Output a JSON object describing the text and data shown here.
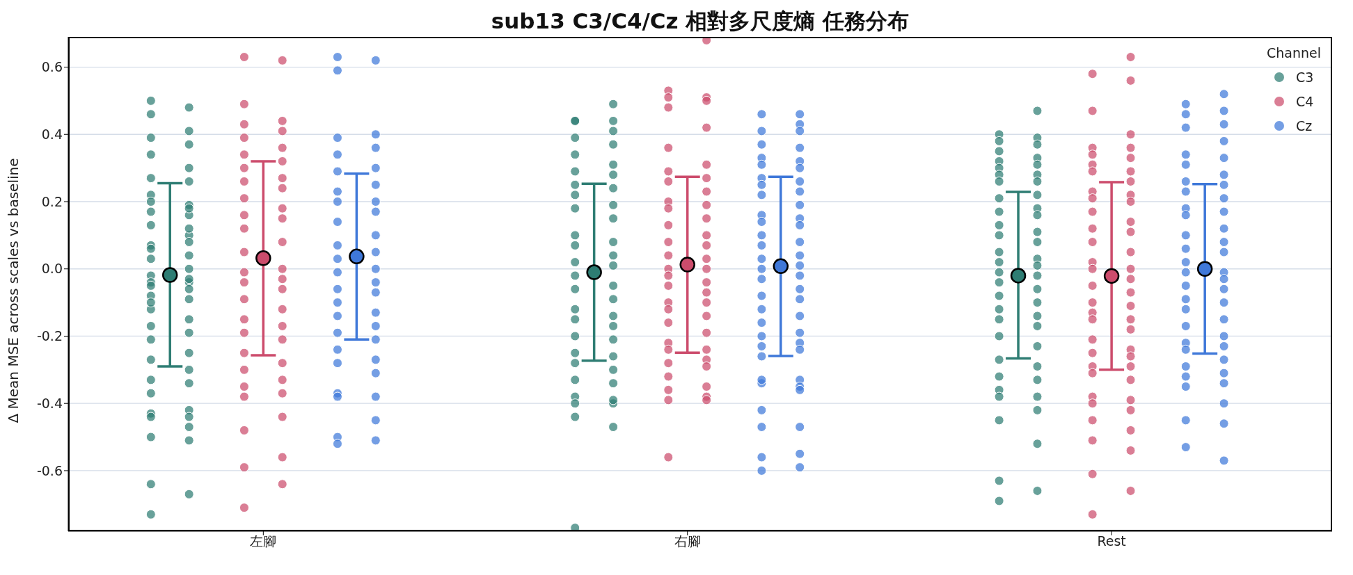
{
  "chart_data": {
    "type": "scatter",
    "title": "sub13 C3/C4/Cz 相對多尺度熵 任務分布",
    "ylabel": "Δ Mean MSE across scales vs baseline",
    "legend_title": "Channel",
    "categories": [
      "左腳",
      "右腳",
      "Rest"
    ],
    "ylim": [
      -0.78,
      0.69
    ],
    "yticks": [
      -0.6,
      -0.4,
      -0.2,
      {
        "value": 0,
        "label": "0.0"
      },
      0.2,
      0.4,
      0.6
    ],
    "grid": "y",
    "legend": "top right",
    "marker": "circle",
    "series": [
      {
        "name": "C3",
        "color": "#2e7d73",
        "x": [
          "左腳",
          "左腳",
          "左腳",
          "左腳",
          "左腳",
          "左腳",
          "左腳",
          "左腳",
          "左腳",
          "左腳",
          "左腳",
          "左腳",
          "左腳",
          "左腳",
          "左腳",
          "左腳",
          "左腳",
          "左腳",
          "左腳",
          "左腳",
          "左腳",
          "左腳",
          "左腳",
          "左腳",
          "左腳",
          "左腳",
          "左腳",
          "左腳",
          "左腳",
          "左腳",
          "左腳",
          "左腳",
          "左腳",
          "左腳",
          "左腳",
          "左腳",
          "左腳",
          "左腳",
          "左腳",
          "左腳",
          "左腳",
          "左腳",
          "左腳",
          "左腳",
          "左腳",
          "左腳",
          "左腳",
          "左腳",
          "左腳",
          "左腳",
          "左腳",
          "左腳",
          "左腳",
          "左腳",
          "左腳",
          "右腳",
          "右腳",
          "右腳",
          "右腳",
          "右腳",
          "右腳",
          "右腳",
          "右腳",
          "右腳",
          "右腳",
          "右腳",
          "右腳",
          "右腳",
          "右腳",
          "右腳",
          "右腳",
          "右腳",
          "右腳",
          "右腳",
          "右腳",
          "右腳",
          "右腳",
          "右腳",
          "右腳",
          "右腳",
          "右腳",
          "右腳",
          "右腳",
          "右腳",
          "右腳",
          "右腳",
          "右腳",
          "右腳",
          "右腳",
          "右腳",
          "右腳",
          "右腳",
          "右腳",
          "右腳",
          "右腳",
          "右腳",
          "右腳",
          "右腳",
          "右腳",
          "右腳",
          "右腳",
          "Rest",
          "Rest",
          "Rest",
          "Rest",
          "Rest",
          "Rest",
          "Rest",
          "Rest",
          "Rest",
          "Rest",
          "Rest",
          "Rest",
          "Rest",
          "Rest",
          "Rest",
          "Rest",
          "Rest",
          "Rest",
          "Rest",
          "Rest",
          "Rest",
          "Rest",
          "Rest",
          "Rest",
          "Rest",
          "Rest",
          "Rest",
          "Rest",
          "Rest",
          "Rest",
          "Rest",
          "Rest",
          "Rest",
          "Rest",
          "Rest",
          "Rest",
          "Rest",
          "Rest",
          "Rest",
          "Rest",
          "Rest",
          "Rest",
          "Rest",
          "Rest",
          "Rest",
          "Rest",
          "Rest",
          "Rest",
          "Rest",
          "Rest",
          "Rest",
          "Rest"
        ],
        "values": [
          0.5,
          0.48,
          0.46,
          0.41,
          0.39,
          0.37,
          0.34,
          0.3,
          0.27,
          0.26,
          0.22,
          0.19,
          0.17,
          0.16,
          0.13,
          0.1,
          0.07,
          0.04,
          0.03,
          0.0,
          -0.02,
          -0.04,
          -0.04,
          -0.06,
          -0.08,
          -0.09,
          -0.12,
          -0.15,
          -0.17,
          -0.19,
          -0.21,
          -0.25,
          -0.27,
          -0.3,
          -0.33,
          -0.34,
          -0.37,
          -0.42,
          -0.43,
          -0.44,
          -0.44,
          -0.47,
          -0.5,
          -0.51,
          -0.64,
          -0.67,
          -0.73,
          0.12,
          0.06,
          0.08,
          -0.05,
          -0.03,
          0.2,
          0.18,
          -0.1,
          0.49,
          0.44,
          0.44,
          0.44,
          0.41,
          0.39,
          0.37,
          0.34,
          0.31,
          0.29,
          0.28,
          0.25,
          0.24,
          0.22,
          0.19,
          0.18,
          0.15,
          0.1,
          0.08,
          0.07,
          0.04,
          0.02,
          0.01,
          -0.02,
          -0.05,
          -0.06,
          -0.09,
          -0.12,
          -0.14,
          -0.15,
          -0.17,
          -0.2,
          -0.21,
          -0.25,
          -0.26,
          -0.28,
          -0.3,
          -0.33,
          -0.34,
          -0.38,
          -0.4,
          -0.4,
          -0.39,
          -0.44,
          -0.47,
          -0.77,
          0.47,
          0.4,
          0.39,
          0.38,
          0.37,
          0.35,
          0.33,
          0.32,
          0.31,
          0.3,
          0.28,
          0.28,
          0.26,
          0.26,
          0.22,
          0.21,
          0.18,
          0.17,
          0.16,
          0.13,
          0.11,
          0.1,
          0.08,
          0.05,
          0.03,
          0.02,
          0.01,
          -0.01,
          -0.02,
          -0.04,
          -0.06,
          -0.08,
          -0.1,
          -0.12,
          -0.14,
          -0.15,
          -0.17,
          -0.2,
          -0.23,
          -0.27,
          -0.29,
          -0.32,
          -0.33,
          -0.36,
          -0.38,
          -0.38,
          -0.42,
          -0.45,
          -0.52,
          -0.63,
          -0.66,
          -0.69
        ]
      },
      {
        "name": "C4",
        "color": "#cc4c6c",
        "x": [
          "左腳",
          "左腳",
          "左腳",
          "左腳",
          "左腳",
          "左腳",
          "左腳",
          "左腳",
          "左腳",
          "左腳",
          "左腳",
          "左腳",
          "左腳",
          "左腳",
          "左腳",
          "左腳",
          "左腳",
          "左腳",
          "左腳",
          "左腳",
          "左腳",
          "左腳",
          "左腳",
          "左腳",
          "左腳",
          "左腳",
          "左腳",
          "左腳",
          "左腳",
          "左腳",
          "左腳",
          "左腳",
          "左腳",
          "左腳",
          "左腳",
          "左腳",
          "左腳",
          "左腳",
          "左腳",
          "左腳",
          "左腳",
          "左腳",
          "左腳",
          "左腳",
          "左腳",
          "右腳",
          "右腳",
          "右腳",
          "右腳",
          "右腳",
          "右腳",
          "右腳",
          "右腳",
          "右腳",
          "右腳",
          "右腳",
          "右腳",
          "右腳",
          "右腳",
          "右腳",
          "右腳",
          "右腳",
          "右腳",
          "右腳",
          "右腳",
          "右腳",
          "右腳",
          "右腳",
          "右腳",
          "右腳",
          "右腳",
          "右腳",
          "右腳",
          "右腳",
          "右腳",
          "右腳",
          "右腳",
          "右腳",
          "右腳",
          "右腳",
          "右腳",
          "右腳",
          "右腳",
          "右腳",
          "右腳",
          "右腳",
          "右腳",
          "右腳",
          "右腳",
          "右腳",
          "右腳",
          "右腳",
          "右腳",
          "Rest",
          "Rest",
          "Rest",
          "Rest",
          "Rest",
          "Rest",
          "Rest",
          "Rest",
          "Rest",
          "Rest",
          "Rest",
          "Rest",
          "Rest",
          "Rest",
          "Rest",
          "Rest",
          "Rest",
          "Rest",
          "Rest",
          "Rest",
          "Rest",
          "Rest",
          "Rest",
          "Rest",
          "Rest",
          "Rest",
          "Rest",
          "Rest",
          "Rest",
          "Rest",
          "Rest",
          "Rest",
          "Rest",
          "Rest",
          "Rest",
          "Rest",
          "Rest",
          "Rest",
          "Rest",
          "Rest",
          "Rest",
          "Rest",
          "Rest",
          "Rest",
          "Rest",
          "Rest",
          "Rest",
          "Rest",
          "Rest",
          "Rest",
          "Rest",
          "Rest",
          "Rest",
          "Rest"
        ],
        "values": [
          0.63,
          0.62,
          0.49,
          0.44,
          0.43,
          0.41,
          0.39,
          0.36,
          0.34,
          0.32,
          0.3,
          0.27,
          0.26,
          0.24,
          0.21,
          0.18,
          0.16,
          0.15,
          0.12,
          0.08,
          0.05,
          0.0,
          -0.01,
          -0.03,
          -0.04,
          -0.06,
          -0.09,
          -0.12,
          -0.15,
          -0.17,
          -0.19,
          -0.21,
          -0.25,
          -0.28,
          -0.3,
          -0.33,
          -0.35,
          -0.37,
          -0.38,
          -0.44,
          -0.48,
          -0.56,
          -0.59,
          -0.64,
          -0.71,
          0.68,
          0.53,
          0.51,
          0.51,
          0.5,
          0.48,
          0.42,
          0.36,
          0.31,
          0.29,
          0.27,
          0.26,
          0.23,
          0.2,
          0.19,
          0.18,
          0.15,
          0.13,
          0.1,
          0.08,
          0.07,
          0.04,
          0.03,
          0.0,
          0.0,
          -0.02,
          -0.04,
          -0.05,
          -0.07,
          -0.1,
          -0.1,
          -0.12,
          -0.14,
          -0.16,
          -0.19,
          -0.22,
          -0.24,
          -0.24,
          -0.27,
          -0.28,
          -0.29,
          -0.32,
          -0.35,
          -0.36,
          -0.38,
          -0.39,
          -0.39,
          -0.56,
          0.63,
          0.58,
          0.56,
          0.47,
          0.4,
          0.36,
          0.36,
          0.34,
          0.33,
          0.31,
          0.29,
          0.29,
          0.26,
          0.23,
          0.22,
          0.21,
          0.2,
          0.17,
          0.14,
          0.12,
          0.11,
          0.08,
          0.05,
          0.02,
          0.0,
          0.0,
          -0.03,
          -0.05,
          -0.07,
          -0.1,
          -0.11,
          -0.13,
          -0.15,
          -0.15,
          -0.18,
          -0.21,
          -0.24,
          -0.25,
          -0.26,
          -0.29,
          -0.29,
          -0.31,
          -0.33,
          -0.38,
          -0.39,
          -0.4,
          -0.42,
          -0.45,
          -0.48,
          -0.51,
          -0.54,
          -0.61,
          -0.66,
          -0.73
        ]
      },
      {
        "name": "Cz",
        "color": "#3f78d9",
        "x": [
          "左腳",
          "左腳",
          "左腳",
          "左腳",
          "左腳",
          "左腳",
          "左腳",
          "左腳",
          "左腳",
          "左腳",
          "左腳",
          "左腳",
          "左腳",
          "左腳",
          "左腳",
          "左腳",
          "左腳",
          "左腳",
          "左腳",
          "左腳",
          "左腳",
          "左腳",
          "左腳",
          "左腳",
          "左腳",
          "左腳",
          "左腳",
          "左腳",
          "左腳",
          "左腳",
          "左腳",
          "左腳",
          "左腳",
          "左腳",
          "左腳",
          "左腳",
          "左腳",
          "左腳",
          "左腳",
          "左腳",
          "左腳",
          "右腳",
          "右腳",
          "右腳",
          "右腳",
          "右腳",
          "右腳",
          "右腳",
          "右腳",
          "右腳",
          "右腳",
          "右腳",
          "右腳",
          "右腳",
          "右腳",
          "右腳",
          "右腳",
          "右腳",
          "右腳",
          "右腳",
          "右腳",
          "右腳",
          "右腳",
          "右腳",
          "右腳",
          "右腳",
          "右腳",
          "右腳",
          "右腳",
          "右腳",
          "右腳",
          "右腳",
          "右腳",
          "右腳",
          "右腳",
          "右腳",
          "右腳",
          "右腳",
          "右腳",
          "右腳",
          "右腳",
          "右腳",
          "右腳",
          "右腳",
          "右腳",
          "右腳",
          "右腳",
          "右腳",
          "右腳",
          "右腳",
          "右腳",
          "右腳",
          "右腳",
          "右腳",
          "右腳",
          "Rest",
          "Rest",
          "Rest",
          "Rest",
          "Rest",
          "Rest",
          "Rest",
          "Rest",
          "Rest",
          "Rest",
          "Rest",
          "Rest",
          "Rest",
          "Rest",
          "Rest",
          "Rest",
          "Rest",
          "Rest",
          "Rest",
          "Rest",
          "Rest",
          "Rest",
          "Rest",
          "Rest",
          "Rest",
          "Rest",
          "Rest",
          "Rest",
          "Rest",
          "Rest",
          "Rest",
          "Rest",
          "Rest",
          "Rest",
          "Rest",
          "Rest",
          "Rest",
          "Rest",
          "Rest",
          "Rest",
          "Rest",
          "Rest",
          "Rest",
          "Rest",
          "Rest",
          "Rest",
          "Rest",
          "Rest",
          "Rest"
        ],
        "values": [
          0.63,
          0.62,
          0.59,
          0.4,
          0.39,
          0.36,
          0.34,
          0.3,
          0.29,
          0.25,
          0.23,
          0.2,
          0.2,
          0.17,
          0.14,
          0.1,
          0.07,
          0.05,
          0.03,
          0.0,
          -0.01,
          -0.04,
          -0.06,
          -0.07,
          -0.1,
          -0.13,
          -0.14,
          -0.17,
          -0.19,
          -0.21,
          -0.24,
          -0.27,
          -0.28,
          -0.31,
          -0.37,
          -0.38,
          -0.38,
          -0.45,
          -0.5,
          -0.51,
          -0.52,
          0.46,
          0.46,
          0.43,
          0.41,
          0.41,
          0.37,
          0.36,
          0.33,
          0.32,
          0.31,
          0.3,
          0.27,
          0.26,
          0.25,
          0.23,
          0.22,
          0.19,
          0.16,
          0.15,
          0.14,
          0.13,
          0.1,
          0.08,
          0.07,
          0.04,
          0.03,
          0.01,
          0.0,
          -0.02,
          -0.03,
          -0.06,
          -0.08,
          -0.09,
          -0.12,
          -0.14,
          -0.16,
          -0.19,
          -0.2,
          -0.22,
          -0.23,
          -0.24,
          -0.26,
          -0.33,
          -0.34,
          -0.35,
          -0.33,
          -0.36,
          -0.42,
          -0.47,
          -0.47,
          -0.55,
          -0.56,
          -0.59,
          -0.6,
          0.52,
          0.49,
          0.47,
          0.46,
          0.43,
          0.42,
          0.38,
          0.34,
          0.33,
          0.31,
          0.28,
          0.26,
          0.25,
          0.23,
          0.21,
          0.18,
          0.17,
          0.16,
          0.12,
          0.1,
          0.08,
          0.06,
          0.05,
          0.02,
          -0.01,
          -0.01,
          -0.03,
          -0.05,
          -0.06,
          -0.09,
          -0.1,
          -0.12,
          -0.15,
          -0.17,
          -0.2,
          -0.22,
          -0.23,
          -0.24,
          -0.27,
          -0.29,
          -0.31,
          -0.32,
          -0.34,
          -0.35,
          -0.4,
          -0.45,
          -0.46,
          -0.53,
          -0.57
        ]
      },
      {
        "color": "#2e7d73",
        "values": [
          -0.018,
          -0.01,
          -0.02
        ],
        "errors": [
          [
            -0.29,
            0.255
          ],
          [
            -0.273,
            0.253
          ],
          [
            -0.266,
            0.229
          ]
        ]
      },
      {
        "color": "#cc4c6c",
        "values": [
          0.032,
          0.013,
          -0.021
        ],
        "errors": [
          [
            -0.257,
            0.32
          ],
          [
            -0.249,
            0.274
          ],
          [
            -0.3,
            0.258
          ]
        ]
      },
      {
        "color": "#3f78d9",
        "values": [
          0.037,
          0.008,
          0.0
        ],
        "errors": [
          [
            -0.21,
            0.283
          ],
          [
            -0.259,
            0.274
          ],
          [
            -0.252,
            0.252
          ]
        ]
      }
    ]
  }
}
